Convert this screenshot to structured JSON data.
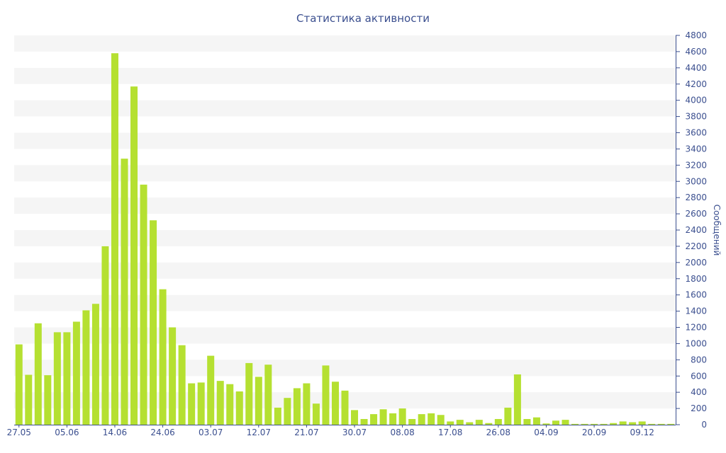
{
  "chart_data": {
    "type": "bar",
    "title": "Статистика активности",
    "xlabel": "",
    "ylabel": "Сообщений",
    "ylim": [
      0,
      4800
    ],
    "y_ticks": [
      0,
      200,
      400,
      600,
      800,
      1000,
      1200,
      1400,
      1600,
      1800,
      2000,
      2200,
      2400,
      2600,
      2800,
      3000,
      3200,
      3400,
      3600,
      3800,
      4000,
      4200,
      4400,
      4600,
      4800
    ],
    "y_axis_side": "right",
    "grid": "alternating horizontal bands",
    "x_tick_labels": [
      {
        "index": 0,
        "label": "27.05"
      },
      {
        "index": 5,
        "label": "05.06"
      },
      {
        "index": 10,
        "label": "14.06"
      },
      {
        "index": 15,
        "label": "24.06"
      },
      {
        "index": 20,
        "label": "03.07"
      },
      {
        "index": 25,
        "label": "12.07"
      },
      {
        "index": 30,
        "label": "21.07"
      },
      {
        "index": 35,
        "label": "30.07"
      },
      {
        "index": 40,
        "label": "08.08"
      },
      {
        "index": 45,
        "label": "17.08"
      },
      {
        "index": 50,
        "label": "26.08"
      },
      {
        "index": 55,
        "label": "04.09"
      },
      {
        "index": 60,
        "label": "20.09"
      },
      {
        "index": 65,
        "label": "09.12"
      }
    ],
    "values": [
      990,
      615,
      1250,
      610,
      1140,
      1140,
      1270,
      1410,
      1490,
      2200,
      4580,
      3280,
      4170,
      2960,
      2520,
      1670,
      1200,
      980,
      510,
      520,
      850,
      540,
      500,
      410,
      760,
      590,
      740,
      210,
      330,
      450,
      510,
      260,
      730,
      530,
      420,
      180,
      70,
      130,
      190,
      140,
      200,
      70,
      130,
      140,
      120,
      40,
      60,
      30,
      60,
      20,
      70,
      210,
      620,
      70,
      90,
      15,
      50,
      60,
      10,
      10,
      10,
      10,
      20,
      40,
      30,
      40,
      10,
      10,
      10
    ],
    "colors": {
      "bar": "#b5e031",
      "band": "#f5f5f5",
      "text": "#3b4f8f",
      "axis": "#3b4f8f"
    }
  }
}
